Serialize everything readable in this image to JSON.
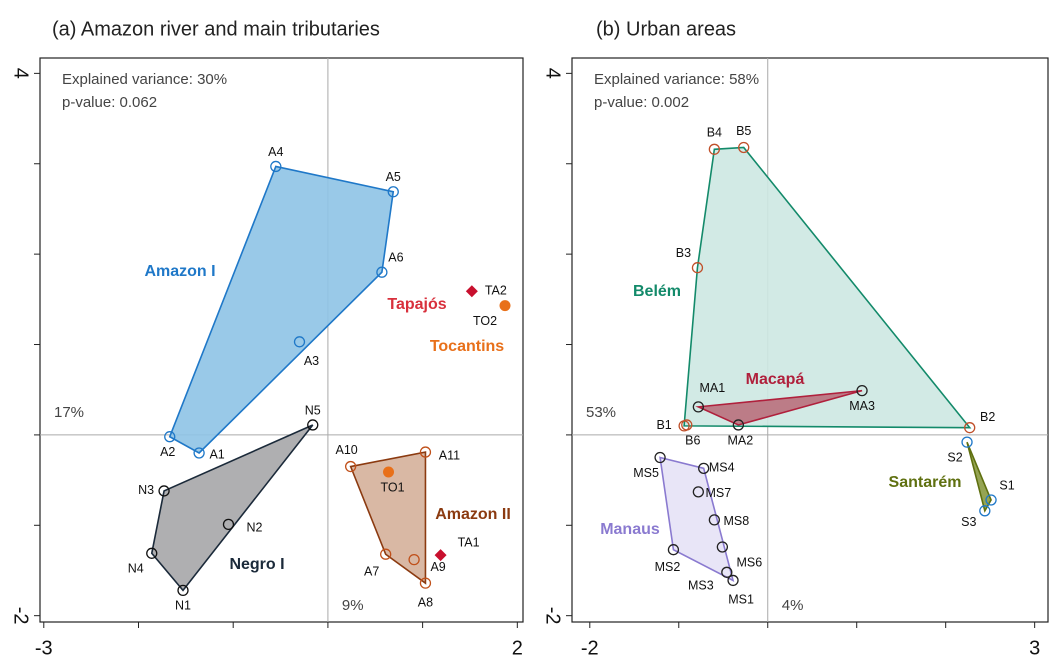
{
  "chart_data": [
    {
      "type": "scatter",
      "title": "(a) Amazon river and main tributaries",
      "annotations": [
        "Explained variance: 30%",
        "p-value: 0.062"
      ],
      "x_variance_label": "9%",
      "y_variance_label": "17%",
      "xlim": [
        -3.04,
        2.06
      ],
      "ylim": [
        -2.07,
        4.17
      ],
      "xticks": [
        -3,
        2
      ],
      "yticks": [
        -2,
        4
      ],
      "xticks_minor": [
        -2,
        -1,
        0,
        1
      ],
      "yticks_minor": [
        -1,
        0,
        1,
        2,
        3
      ],
      "reference_lines": {
        "x": 0,
        "y": 0
      },
      "series": [
        {
          "name": "Amazon I",
          "color": "#1f78c8",
          "fill": "#8ec3e6",
          "marker": "circle",
          "marker_color": "#1f78c8",
          "hull": true,
          "labels": [
            "A4",
            "A5",
            "A6",
            "A3",
            "A2",
            "A1"
          ],
          "x": [
            -0.55,
            0.69,
            0.57,
            -0.3,
            -1.67,
            -1.36
          ],
          "y": [
            2.97,
            2.69,
            1.8,
            1.03,
            -0.02,
            -0.2
          ]
        },
        {
          "name": "Negro I",
          "color": "#1b2a3a",
          "fill": "#a6a6a8",
          "marker": "circle",
          "marker_color": "#111111",
          "hull": true,
          "labels": [
            "N5",
            "N3",
            "N2",
            "N4",
            "N1"
          ],
          "x": [
            -0.16,
            -1.73,
            -1.05,
            -1.86,
            -1.53
          ],
          "y": [
            0.11,
            -0.62,
            -0.99,
            -1.31,
            -1.72
          ]
        },
        {
          "name": "Amazon II",
          "color": "#8b3a10",
          "fill": "#d5b09a",
          "marker": "circle",
          "marker_color": "#c0501a",
          "hull": true,
          "labels": [
            "A10",
            "A11",
            "A7",
            "A9",
            "A8"
          ],
          "x": [
            0.24,
            1.03,
            0.61,
            0.91,
            1.03
          ],
          "y": [
            -0.35,
            -0.19,
            -1.32,
            -1.38,
            -1.64
          ]
        },
        {
          "name": "Tapajós",
          "color": "#d8303c",
          "marker": "diamond",
          "marker_color": "#c8102e",
          "hull": false,
          "labels": [
            "TA2",
            "TA1"
          ],
          "x": [
            1.52,
            1.19
          ],
          "y": [
            1.59,
            -1.33
          ]
        },
        {
          "name": "Tocantins",
          "color": "#e8701a",
          "marker": "dot",
          "marker_color": "#e8701a",
          "hull": false,
          "labels": [
            "TO2",
            "TO1"
          ],
          "x": [
            1.87,
            0.64
          ],
          "y": [
            1.43,
            -0.41
          ]
        }
      ]
    },
    {
      "type": "scatter",
      "title": "(b) Urban areas",
      "annotations": [
        "Explained variance: 58%",
        "p-value: 0.002"
      ],
      "x_variance_label": "4%",
      "y_variance_label": "53%",
      "xlim": [
        -2.2,
        3.15
      ],
      "ylim": [
        -2.07,
        4.17
      ],
      "xticks": [
        -2,
        3
      ],
      "yticks": [
        -2,
        4
      ],
      "xticks_minor": [
        -1,
        0,
        1,
        2
      ],
      "yticks_minor": [
        -1,
        0,
        1,
        2,
        3
      ],
      "reference_lines": {
        "x": 0,
        "y": 0
      },
      "series": [
        {
          "name": "Belém",
          "color": "#138a6a",
          "fill": "#cde8e2",
          "marker": "circle",
          "marker_color": "#c0502a",
          "hull": true,
          "labels": [
            "B4",
            "B5",
            "B3",
            "B2",
            "B1",
            "B6"
          ],
          "x": [
            -0.6,
            -0.27,
            -0.79,
            2.27,
            -0.94,
            -0.91
          ],
          "y": [
            3.16,
            3.18,
            1.85,
            0.08,
            0.1,
            0.11
          ]
        },
        {
          "name": "Macapá",
          "color": "#b0203c",
          "fill": "#b9707c",
          "marker": "circle",
          "marker_color": "#222222",
          "hull": true,
          "labels": [
            "MA1",
            "MA2",
            "MA3"
          ],
          "x": [
            -0.78,
            -0.33,
            1.06
          ],
          "y": [
            0.31,
            0.11,
            0.49
          ]
        },
        {
          "name": "Santarém",
          "color": "#5f7010",
          "fill": "#8a9a40",
          "marker": "circle",
          "marker_color": "#1f78c8",
          "hull": true,
          "labels": [
            "S2",
            "S1",
            "S3"
          ],
          "x": [
            2.24,
            2.51,
            2.44
          ],
          "y": [
            -0.08,
            -0.72,
            -0.84
          ]
        },
        {
          "name": "Manaus",
          "color": "#8a7ad0",
          "fill": "#e6e2f6",
          "marker": "circle",
          "marker_color": "#222222",
          "hull": true,
          "labels": [
            "MS5",
            "MS4",
            "MS7",
            "MS8",
            "MS6",
            "MS2",
            "MS3",
            "MS1"
          ],
          "x": [
            -1.21,
            -0.72,
            -0.78,
            -0.6,
            -0.51,
            -1.06,
            -0.46,
            -0.39
          ],
          "y": [
            -0.25,
            -0.37,
            -0.63,
            -0.94,
            -1.24,
            -1.27,
            -1.52,
            -1.61
          ]
        }
      ]
    }
  ]
}
